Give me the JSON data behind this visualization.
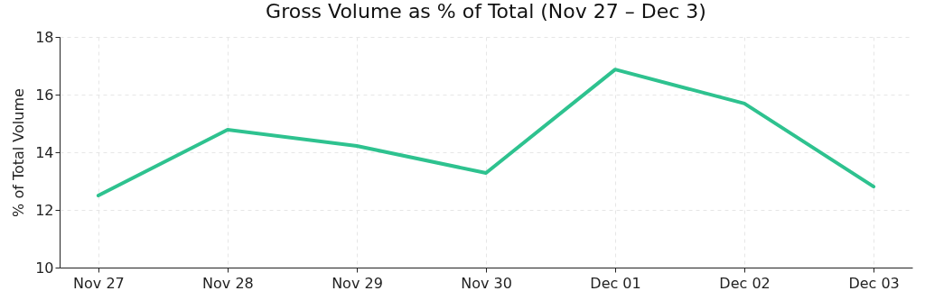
{
  "chart_data": {
    "type": "line",
    "title": "Gross Volume as % of Total (Nov 27 – Dec 3)",
    "ylabel": "% of Total Volume",
    "categories": [
      "Nov 27",
      "Nov 28",
      "Nov 29",
      "Nov 30",
      "Dec 01",
      "Dec 02",
      "Dec 03"
    ],
    "series": [
      {
        "color": "#2ec28f",
        "values": [
          12.5,
          14.78,
          14.22,
          13.28,
          16.87,
          15.69,
          12.81
        ]
      }
    ],
    "ylim": [
      10,
      18
    ],
    "yticks": [
      10,
      12,
      14,
      16,
      18
    ],
    "grid": true,
    "marker": "none",
    "line_style": "solid"
  }
}
